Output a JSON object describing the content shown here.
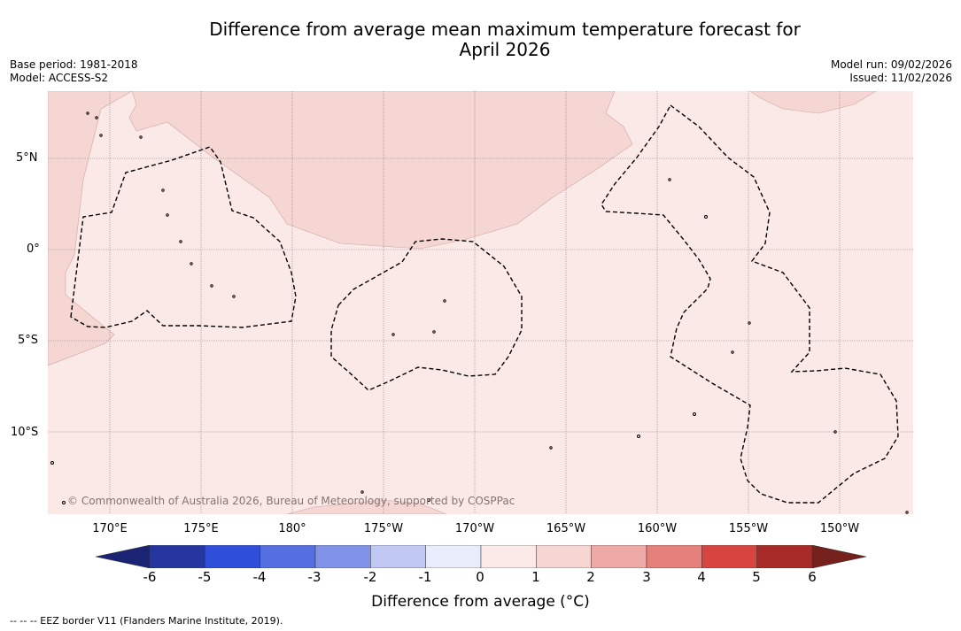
{
  "title": {
    "line1": "Difference from average mean maximum temperature forecast for",
    "line2": "April 2026"
  },
  "meta": {
    "base_period": "Base period: 1981-2018",
    "model": "Model: ACCESS-S2",
    "model_run": "Model run: 09/02/2026",
    "issued": "Issued: 11/02/2026"
  },
  "map": {
    "lat_labels": [
      "5°N",
      "0°",
      "5°S",
      "10°S"
    ],
    "lon_labels": [
      "170°E",
      "175°E",
      "180°",
      "175°W",
      "170°W",
      "165°W",
      "160°W",
      "155°W",
      "150°W"
    ],
    "copyright": "© Commonwealth of Australia 2026, Bureau of Meteorology, supported by COSPPac",
    "colors": {
      "anomaly_0_1": "#fbe9e7",
      "anomaly_1_2": "#f5d6d3",
      "grid": "#8a7f82",
      "eez": "#000000"
    }
  },
  "colorbar": {
    "ticks": [
      "-6",
      "-5",
      "-4",
      "-3",
      "-2",
      "-1",
      "0",
      "1",
      "2",
      "3",
      "4",
      "5",
      "6"
    ],
    "label": "Difference from average (°C)",
    "colors": [
      "#25369f",
      "#2f4fdb",
      "#566fe0",
      "#8093e8",
      "#c0c8f3",
      "#e9ecfb",
      "#fbeae8",
      "#f5d6d3",
      "#edaaa7",
      "#e5807b",
      "#d8443f",
      "#a82b27"
    ],
    "under_color": "#1b2474",
    "over_color": "#74201c"
  },
  "footnote": "--  --  -- EEZ border V11 (Flanders Marine Institute, 2019)."
}
